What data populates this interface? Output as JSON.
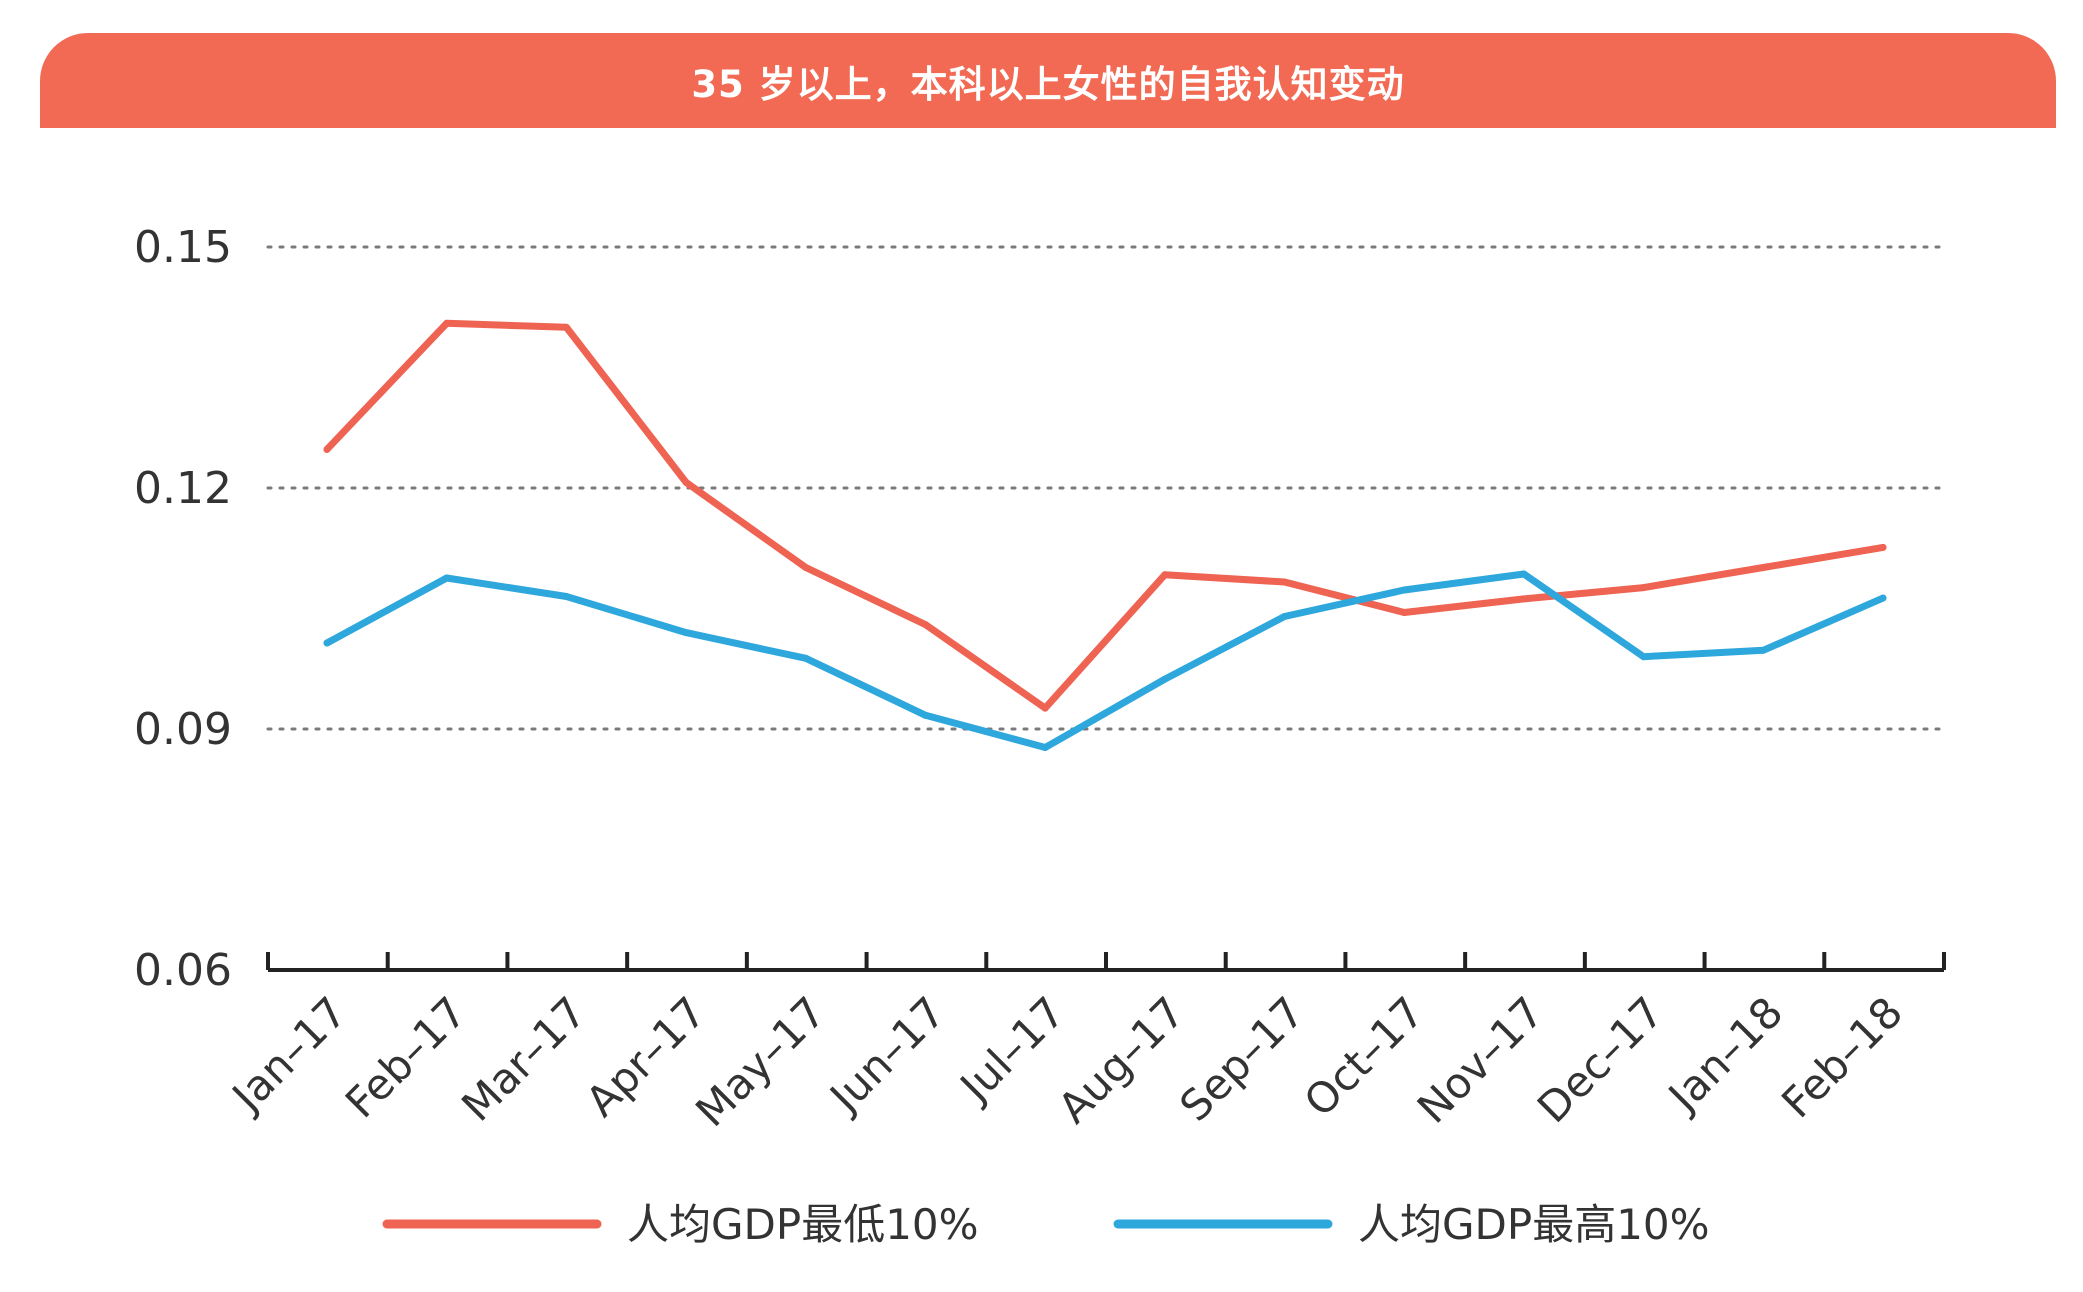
{
  "chart_data": {
    "type": "line",
    "title": "35 岁以上，本科以上女性的自我认知变动",
    "xlabel": "",
    "ylabel": "",
    "ylim": [
      0.06,
      0.15
    ],
    "yticks": [
      "0.06",
      "0.09",
      "0.12",
      "0.15"
    ],
    "ytick_values": [
      0.06,
      0.09,
      0.12,
      0.15
    ],
    "grid": true,
    "legend_position": "bottom",
    "categories": [
      "Jan-17",
      "Feb-17",
      "Mar-17",
      "Apr-17",
      "May-17",
      "Jun-17",
      "Jul-17",
      "Aug-17",
      "Sep-17",
      "Oct-17",
      "Nov-17",
      "Dec-17",
      "Jan-18",
      "Feb-18"
    ],
    "series": [
      {
        "name": "人均GDP最低10%",
        "color": "#ee6352",
        "values": [
          0.1248,
          0.1405,
          0.14,
          0.1207,
          0.1101,
          0.103,
          0.0926,
          0.1092,
          0.1083,
          0.1045,
          0.1062,
          0.1076,
          0.1101,
          0.1126
        ]
      },
      {
        "name": "人均GDP最高10%",
        "color": "#2ea7dd",
        "values": [
          0.1007,
          0.1088,
          0.1065,
          0.102,
          0.0988,
          0.0917,
          0.0877,
          0.0962,
          0.104,
          0.1073,
          0.1093,
          0.099,
          0.0998,
          0.1063
        ]
      }
    ]
  }
}
